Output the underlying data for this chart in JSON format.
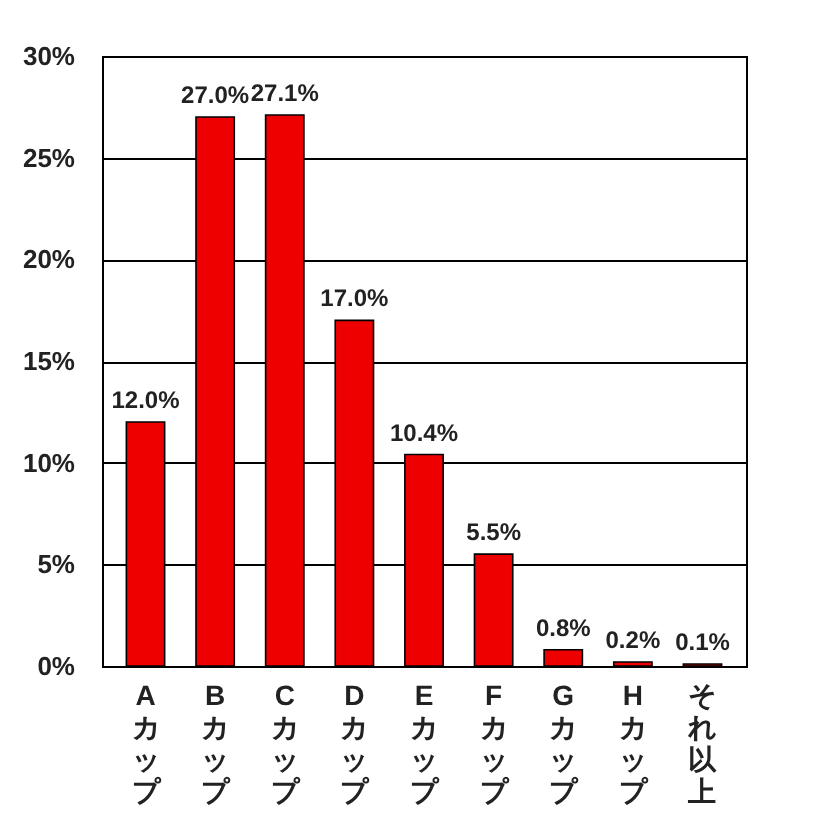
{
  "chart_data": {
    "type": "bar",
    "categories": [
      "Aカップ",
      "Bカップ",
      "Cカップ",
      "Dカップ",
      "Eカップ",
      "Fカップ",
      "Gカップ",
      "Hカップ",
      "それ以上"
    ],
    "values": [
      12.0,
      27.0,
      27.1,
      17.0,
      10.4,
      5.5,
      0.8,
      0.2,
      0.1
    ],
    "value_labels": [
      "12.0%",
      "27.0%",
      "27.1%",
      "17.0%",
      "10.4%",
      "5.5%",
      "0.8%",
      "0.2%",
      "0.1%"
    ],
    "color": "#ee0000",
    "ylim": [
      0,
      30
    ],
    "yticks": [
      {
        "value": 0,
        "label": "0%"
      },
      {
        "value": 5,
        "label": "5%"
      },
      {
        "value": 10,
        "label": "10%"
      },
      {
        "value": 15,
        "label": "15%"
      },
      {
        "value": 20,
        "label": "20%"
      },
      {
        "value": 25,
        "label": "25%"
      },
      {
        "value": 30,
        "label": "30%"
      }
    ],
    "grid": "y"
  }
}
